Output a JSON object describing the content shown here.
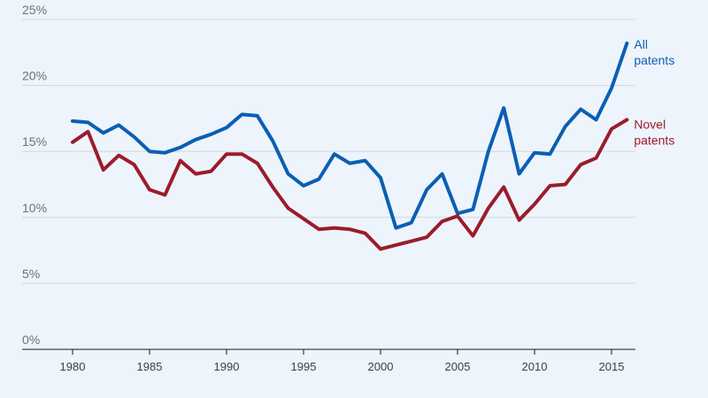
{
  "chart_data": {
    "type": "line",
    "xlim": [
      1977,
      2017
    ],
    "ylim": [
      0,
      25
    ],
    "grid": true,
    "x_ticks": [
      1980,
      1985,
      1990,
      1995,
      2000,
      2005,
      2010,
      2015
    ],
    "y_ticks": [
      {
        "value": 0,
        "label": "0%"
      },
      {
        "value": 5,
        "label": "5%"
      },
      {
        "value": 10,
        "label": "10%"
      },
      {
        "value": 15,
        "label": "15%"
      },
      {
        "value": 20,
        "label": "20%"
      },
      {
        "value": 25,
        "label": "25%"
      }
    ],
    "x": [
      1980,
      1981,
      1982,
      1983,
      1984,
      1985,
      1986,
      1987,
      1988,
      1989,
      1990,
      1991,
      1992,
      1993,
      1994,
      1995,
      1996,
      1997,
      1998,
      1999,
      2000,
      2001,
      2002,
      2003,
      2004,
      2005,
      2006,
      2007,
      2008,
      2009,
      2010,
      2011,
      2012,
      2013,
      2014,
      2015,
      2016
    ],
    "series": [
      {
        "name": "All patents",
        "label_lines": [
          "All",
          "patents"
        ],
        "color": "#0a5fb4",
        "values": [
          17.3,
          17.2,
          16.4,
          17.0,
          16.1,
          15.0,
          14.9,
          15.3,
          15.9,
          16.3,
          16.8,
          17.8,
          17.7,
          15.8,
          13.3,
          12.4,
          12.9,
          14.8,
          14.1,
          14.3,
          13.0,
          9.2,
          9.6,
          12.1,
          13.3,
          10.3,
          10.6,
          15.0,
          18.3,
          13.3,
          14.9,
          14.8,
          16.9,
          18.2,
          17.4,
          19.8,
          23.2
        ]
      },
      {
        "name": "Novel patents",
        "label_lines": [
          "Novel",
          "patents"
        ],
        "color": "#9b1c2c",
        "values": [
          15.7,
          16.5,
          13.6,
          14.7,
          14.0,
          12.1,
          11.7,
          14.3,
          13.3,
          13.5,
          14.8,
          14.8,
          14.1,
          12.3,
          10.7,
          9.9,
          9.1,
          9.2,
          9.1,
          8.8,
          7.6,
          7.9,
          8.2,
          8.5,
          9.7,
          10.1,
          8.6,
          10.7,
          12.3,
          9.8,
          11.0,
          12.4,
          12.5,
          14.0,
          14.5,
          16.7,
          17.4
        ]
      }
    ]
  }
}
